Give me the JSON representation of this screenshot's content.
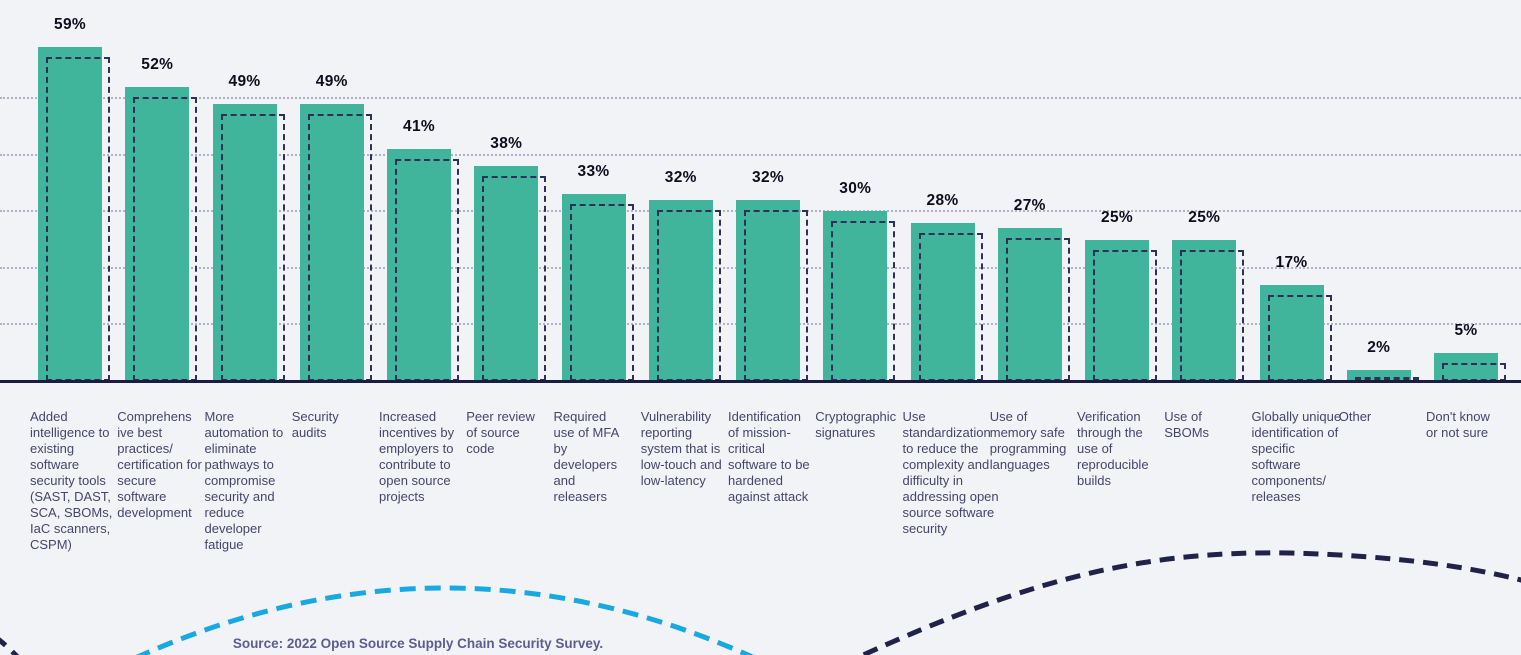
{
  "chart_data": {
    "type": "bar",
    "title": "",
    "value_suffix": "%",
    "ylim": [
      0,
      60
    ],
    "grid": "dotted-horizontal",
    "gridlines_percent": [
      10,
      20,
      30,
      40,
      50
    ],
    "legend_position": "none",
    "categories": [
      "Added\nintelligence to\nexisting\nsoftware\nsecurity tools\n(SAST, DAST,\nSCA, SBOMs,\nIaC scanners,\nCSPM)",
      "Comprehens\nive best\npractices/\ncertification for\nsecure\nsoftware\ndevelopment",
      "More\nautomation to\neliminate\npathways to\ncompromise\nsecurity and\nreduce\ndeveloper\nfatigue",
      "Security\naudits",
      "Increased\nincentives by\nemployers to\ncontribute to\nopen source\nprojects",
      "Peer review\nof source\ncode",
      "Required\nuse of MFA\nby\ndevelopers\nand\nreleasers",
      "Vulnerability\nreporting\nsystem that is\nlow-touch and\nlow-latency",
      "Identification\nof mission-\ncritical\nsoftware to be\nhardened\nagainst attack",
      "Cryptographic\nsignatures",
      "Use\nstandardization\nto reduce the\ncomplexity and\ndifficulty in\naddressing open\nsource software\nsecurity",
      "Use of\nmemory safe\nprogramming\nlanguages",
      "Verification\nthrough the\nuse of\nreproducible\nbuilds",
      "Use of\nSBOMs",
      "Globally unique\nidentification of\nspecific\nsoftware\ncomponents/\nreleases",
      "Other",
      "Don't know\nor not sure"
    ],
    "values": [
      59,
      52,
      49,
      49,
      41,
      38,
      33,
      32,
      32,
      30,
      28,
      27,
      25,
      25,
      17,
      2,
      5
    ],
    "value_labels": [
      "59%",
      "52%",
      "49%",
      "49%",
      "41%",
      "38%",
      "33%",
      "32%",
      "32%",
      "30%",
      "28%",
      "27%",
      "25%",
      "25%",
      "17%",
      "2%",
      "5%"
    ],
    "colors": {
      "bar_fill": "#41b49c",
      "bar_dashed_outline": "#2e3057",
      "axis": "#1b1c41",
      "gridline": "#aeb1c7",
      "value_text": "#0d0d1f",
      "category_text": "#45446b",
      "background": "#f2f3f7",
      "decor_curve_cyan": "#18a9e2",
      "decor_curve_navy": "#20224a"
    }
  },
  "source": {
    "text": "Source: 2022 Open Source Supply Chain Security Survey."
  }
}
